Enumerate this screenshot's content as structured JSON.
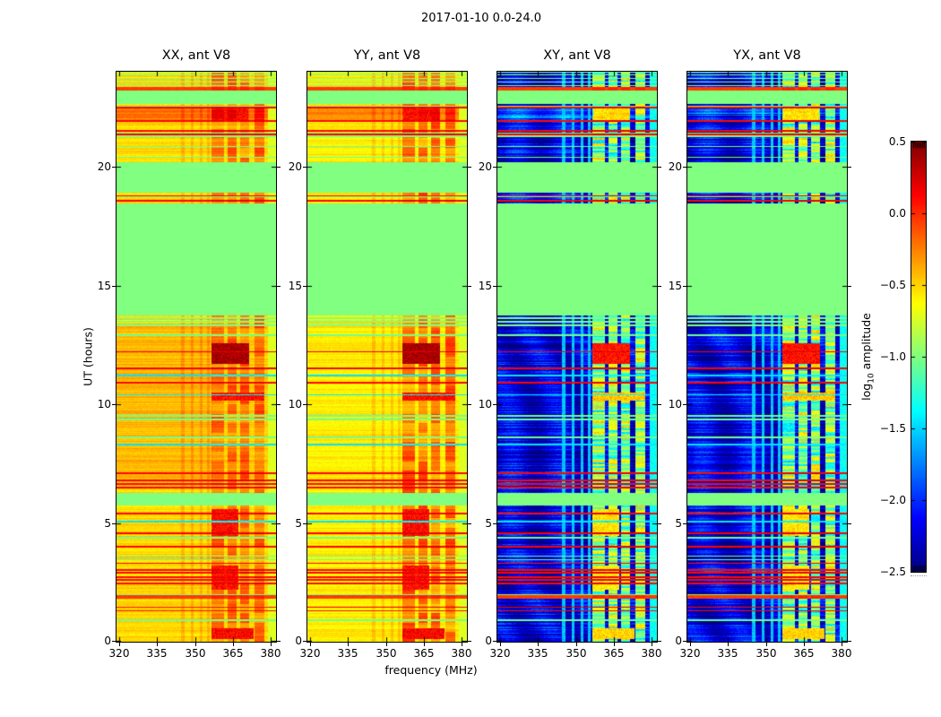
{
  "chart_data": {
    "type": "heatmap",
    "title": "2017-01-10 0.0-24.0",
    "xlabel": "frequency (MHz)",
    "ylabel": "UT (hours)",
    "colorbar_label": {
      "pre": "log",
      "sub": "10",
      "post": " amplitude"
    },
    "colormap": "jet",
    "clim": [
      -2.5,
      0.5
    ],
    "x_range": [
      319,
      382
    ],
    "y_range": [
      0,
      24
    ],
    "no_data_value": -1.0,
    "x_ticks": [
      {
        "label": "320",
        "value": 320
      },
      {
        "label": "335",
        "value": 335
      },
      {
        "label": "350",
        "value": 350
      },
      {
        "label": "365",
        "value": 365
      },
      {
        "label": "380",
        "value": 380
      }
    ],
    "y_ticks": [
      {
        "label": "0",
        "value": 0
      },
      {
        "label": "5",
        "value": 5
      },
      {
        "label": "10",
        "value": 10
      },
      {
        "label": "15",
        "value": 15
      },
      {
        "label": "20",
        "value": 20
      }
    ],
    "colorbar_ticks": [
      {
        "label": "0.5",
        "value": 0.5
      },
      {
        "label": "0.0",
        "value": 0.0
      },
      {
        "label": "−0.5",
        "value": -0.5
      },
      {
        "label": "−1.0",
        "value": -1.0
      },
      {
        "label": "−1.5",
        "value": -1.5
      },
      {
        "label": "−2.0",
        "value": -2.0
      },
      {
        "label": "−2.5",
        "value": -2.5
      }
    ],
    "panels": [
      {
        "title": "XX, ant V8",
        "pol": "XX",
        "mode": "parallel",
        "base": -0.52,
        "wash": 0.1,
        "colscale": 1.0
      },
      {
        "title": "YY, ant V8",
        "pol": "YY",
        "mode": "parallel",
        "base": -0.58,
        "wash": 0.0,
        "colscale": 1.25
      },
      {
        "title": "XY, ant V8",
        "pol": "XY",
        "mode": "cross",
        "base": -2.22,
        "wash": 0.0,
        "colscale": 1.0
      },
      {
        "title": "YX, ant V8",
        "pol": "YX",
        "mode": "cross",
        "base": -2.22,
        "wash": 0.0,
        "colscale": 1.0
      }
    ],
    "time_bands": [
      {
        "t0": 0.0,
        "t1": 1.8,
        "kind": "data"
      },
      {
        "t0": 2.0,
        "t1": 5.72,
        "kind": "data"
      },
      {
        "t0": 6.28,
        "t1": 13.25,
        "kind": "data"
      },
      {
        "t0": 13.25,
        "t1": 13.82,
        "kind": "stripes"
      },
      {
        "t0": 18.45,
        "t1": 19.0,
        "kind": "rows"
      },
      {
        "t0": 20.2,
        "t1": 21.25,
        "kind": "data"
      },
      {
        "t0": 21.45,
        "t1": 21.9,
        "kind": "data"
      },
      {
        "t0": 21.9,
        "t1": 22.5,
        "kind": "strong"
      },
      {
        "t0": 22.5,
        "t1": 22.68,
        "kind": "stripes"
      },
      {
        "t0": 23.36,
        "t1": 23.96,
        "kind": "stripes3"
      }
    ],
    "feature_columns": [
      [
        356.5,
        361.5
      ],
      [
        362.8,
        366.5
      ],
      [
        368.0,
        371.5
      ],
      [
        373.5,
        377.5
      ]
    ],
    "thin_columns": [
      345.2,
      348.8,
      352.3,
      355.3
    ],
    "lines": [
      {
        "t": 0.9,
        "v": -1.05
      },
      {
        "t": 1.3,
        "v": 0.1
      },
      {
        "t": 1.45,
        "v": 0.12
      },
      {
        "t": 1.88,
        "v": -0.05,
        "w": 0.16
      },
      {
        "t": 2.45,
        "v": 0.1
      },
      {
        "t": 2.6,
        "v": 0.1
      },
      {
        "t": 2.72,
        "v": 0.1
      },
      {
        "t": 2.9,
        "v": 0.1
      },
      {
        "t": 3.02,
        "v": 0.1
      },
      {
        "t": 3.3,
        "v": 0.1
      },
      {
        "t": 3.45,
        "v": -1.05
      },
      {
        "t": 3.6,
        "v": -1.05
      },
      {
        "t": 4.0,
        "v": 0.12
      },
      {
        "t": 4.38,
        "v": -1.05
      },
      {
        "t": 4.57,
        "v": 0.14
      },
      {
        "t": 5.05,
        "v": -1.45
      },
      {
        "t": 5.4,
        "v": 0.1
      },
      {
        "t": 6.5,
        "v": 0.1
      },
      {
        "t": 6.65,
        "v": 0.1
      },
      {
        "t": 6.8,
        "v": 0.1
      },
      {
        "t": 7.1,
        "v": 0.12
      },
      {
        "t": 8.3,
        "v": -1.45
      },
      {
        "t": 8.6,
        "v": -1.05
      },
      {
        "t": 9.35,
        "v": -1.05
      },
      {
        "t": 9.5,
        "v": -1.05
      },
      {
        "t": 10.4,
        "v": -1.45
      },
      {
        "t": 10.9,
        "v": 0.12
      },
      {
        "t": 11.2,
        "v": -1.45
      },
      {
        "t": 11.5,
        "v": 0.14
      },
      {
        "t": 12.2,
        "v": 0.14
      },
      {
        "t": 12.9,
        "v": -1.05
      },
      {
        "t": 18.57,
        "v": 0.12
      },
      {
        "t": 18.77,
        "v": 0.12
      },
      {
        "t": 20.4,
        "v": -1.05
      },
      {
        "t": 20.85,
        "v": -1.05
      },
      {
        "t": 21.36,
        "v": 0.12
      },
      {
        "t": 21.5,
        "v": 0.1,
        "w": 0.08
      },
      {
        "t": 21.92,
        "v": 0.1,
        "w": 0.08
      },
      {
        "t": 22.48,
        "v": 0.1,
        "w": 0.08
      },
      {
        "t": 23.28,
        "v": -0.05,
        "w": 0.15
      }
    ],
    "hotspots": [
      {
        "t0": 11.7,
        "t1": 12.55,
        "f0": 356.5,
        "f1": 371.5,
        "vpar": 0.38,
        "vcross": 0.08
      },
      {
        "t0": 10.15,
        "t1": 10.5,
        "f0": 356.5,
        "f1": 377.5,
        "vpar": 0.1,
        "vcross": -0.45
      },
      {
        "t0": 0.1,
        "t1": 0.55,
        "f0": 356.5,
        "f1": 373.0,
        "vpar": 0.12,
        "vcross": -0.5
      },
      {
        "t0": 21.95,
        "t1": 22.45,
        "f0": 357.0,
        "f1": 371.0,
        "vpar": 0.1,
        "vcross": -0.55
      },
      {
        "t0": 2.2,
        "t1": 3.2,
        "f0": 356.5,
        "f1": 367.0,
        "vpar": 0.08,
        "vcross": -0.6
      },
      {
        "t0": 4.45,
        "t1": 5.6,
        "f0": 356.5,
        "f1": 367.0,
        "vpar": 0.1,
        "vcross": -0.55
      }
    ]
  }
}
